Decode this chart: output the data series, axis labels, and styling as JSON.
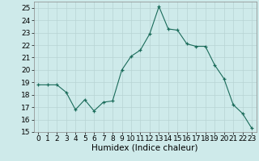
{
  "x": [
    0,
    1,
    2,
    3,
    4,
    5,
    6,
    7,
    8,
    9,
    10,
    11,
    12,
    13,
    14,
    15,
    16,
    17,
    18,
    19,
    20,
    21,
    22,
    23
  ],
  "y": [
    18.8,
    18.8,
    18.8,
    18.2,
    16.8,
    17.6,
    16.7,
    17.4,
    17.5,
    20.0,
    21.1,
    21.6,
    22.9,
    25.1,
    23.3,
    23.2,
    22.1,
    21.9,
    21.9,
    20.4,
    19.3,
    17.2,
    16.5,
    15.3
  ],
  "line_color": "#1a6b5a",
  "marker": "+",
  "marker_size": 3.5,
  "bg_color": "#ceeaea",
  "grid_color": "#b8d4d4",
  "xlabel": "Humidex (Indice chaleur)",
  "ylim": [
    15,
    25.5
  ],
  "yticks": [
    15,
    16,
    17,
    18,
    19,
    20,
    21,
    22,
    23,
    24,
    25
  ],
  "xlabel_fontsize": 7.5,
  "tick_fontsize": 6.5
}
